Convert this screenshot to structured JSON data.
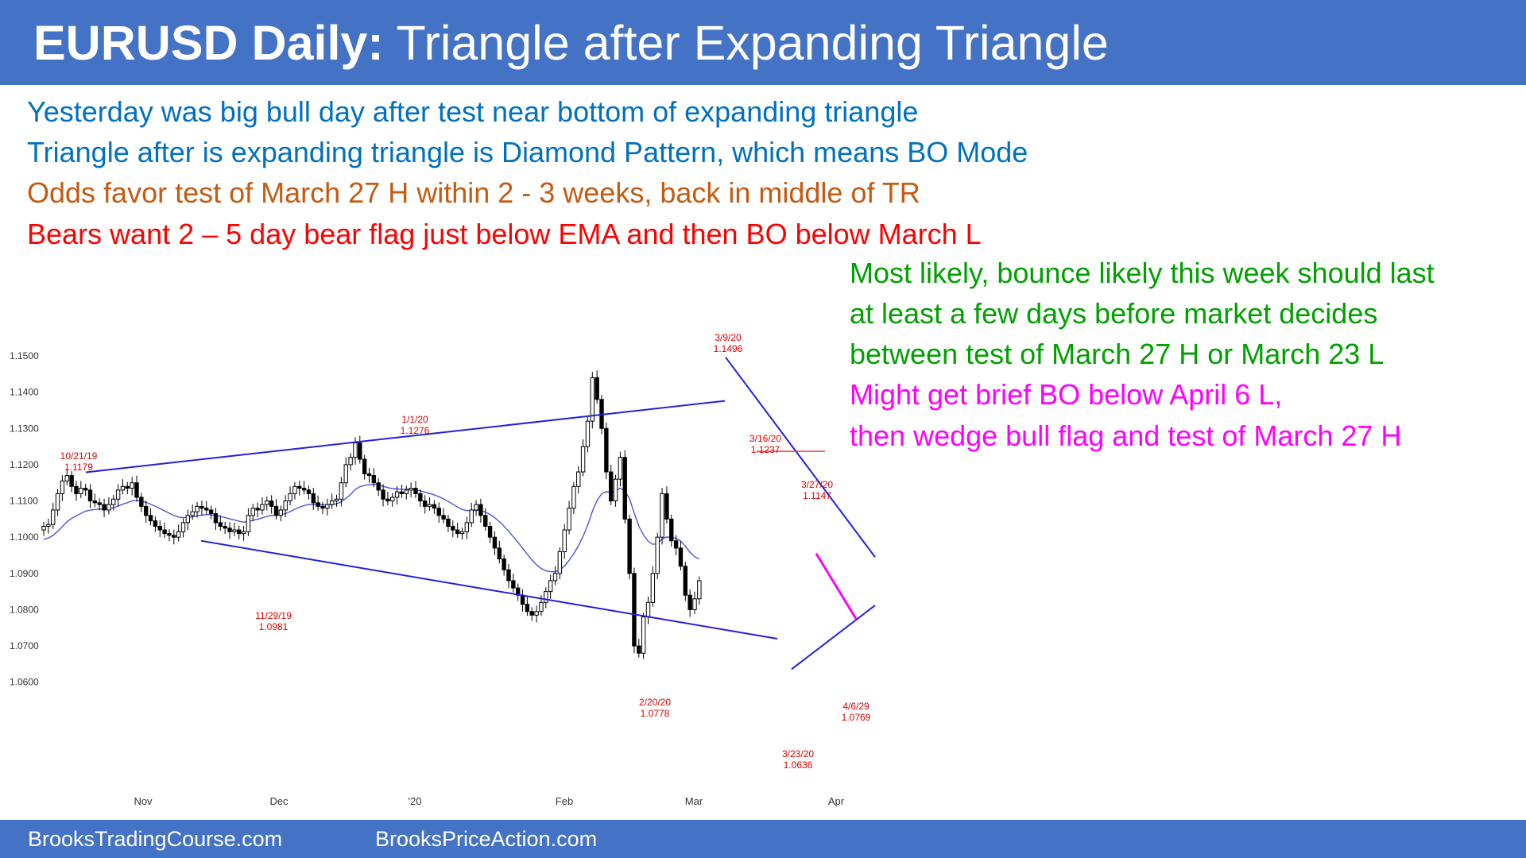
{
  "header": {
    "title_bold": "EURUSD Daily:",
    "title_rest": " Triangle after Expanding Triangle"
  },
  "commentary": [
    {
      "text": "Yesterday was big bull day after test near bottom of expanding triangle",
      "color": "#0070c0"
    },
    {
      "text": "Triangle after is expanding triangle is Diamond Pattern, which means BO Mode",
      "color": "#0070c0"
    },
    {
      "text": "Odds favor test of March 27 H within 2  - 3 weeks, back in middle of TR",
      "color": "#c55a11"
    },
    {
      "text": "Bears want 2 – 5 day bear flag just below EMA and then BO below March L",
      "color": "#ff0000"
    },
    {
      "text": "Most likely, bounce likely this week should last",
      "color": "#00a000"
    },
    {
      "text": "at least a few days before market decides",
      "color": "#00a000"
    },
    {
      "text": "between test of March 27 H or March 23 L",
      "color": "#00a000"
    },
    {
      "text": "Might get brief BO below April 6 L,",
      "color": "#ff00ff"
    },
    {
      "text": "then wedge bull flag and test of March 27 H",
      "color": "#ff00ff"
    }
  ],
  "footer": {
    "left": "BrooksTradingCourse.com",
    "right": "BrooksPriceAction.com"
  },
  "chart_data": {
    "type": "candlestick",
    "title": "",
    "y_ticks": [
      "1.1500",
      "1.1400",
      "1.1300",
      "1.1200",
      "1.1100",
      "1.1000",
      "1.0900",
      "1.0800",
      "1.0700",
      "1.0600"
    ],
    "x_ticks": [
      "Nov",
      "Dec",
      "'20",
      "Feb",
      "Mar",
      "Apr"
    ],
    "ylim": [
      1.0555,
      1.1545
    ],
    "grid": false,
    "close": [
      1.103,
      1.1035,
      1.1075,
      1.112,
      1.1155,
      1.117,
      1.114,
      1.112,
      1.1135,
      1.113,
      1.11,
      1.1095,
      1.109,
      1.1075,
      1.109,
      1.1105,
      1.113,
      1.114,
      1.1135,
      1.115,
      1.111,
      1.1085,
      1.106,
      1.1045,
      1.103,
      1.102,
      1.101,
      1.1005,
      1.1,
      1.1015,
      1.104,
      1.106,
      1.107,
      1.1085,
      1.108,
      1.1075,
      1.1065,
      1.104,
      1.103,
      1.1025,
      1.1015,
      1.102,
      1.101,
      1.1015,
      1.106,
      1.108,
      1.1075,
      1.109,
      1.11,
      1.1085,
      1.106,
      1.1075,
      1.11,
      1.112,
      1.114,
      1.1135,
      1.113,
      1.112,
      1.1095,
      1.1085,
      1.108,
      1.109,
      1.11,
      1.1105,
      1.115,
      1.12,
      1.122,
      1.126,
      1.1215,
      1.1175,
      1.117,
      1.115,
      1.113,
      1.1105,
      1.11,
      1.111,
      1.1125,
      1.112,
      1.113,
      1.1135,
      1.112,
      1.11,
      1.1085,
      1.109,
      1.108,
      1.106,
      1.105,
      1.103,
      1.102,
      1.101,
      1.1015,
      1.104,
      1.1075,
      1.109,
      1.106,
      1.103,
      1.1,
      1.097,
      1.094,
      1.091,
      1.088,
      1.086,
      1.084,
      1.0815,
      1.0795,
      1.0785,
      1.0795,
      1.082,
      1.085,
      1.088,
      1.09,
      1.096,
      1.102,
      1.108,
      1.114,
      1.118,
      1.125,
      1.132,
      1.144,
      1.138,
      1.13,
      1.118,
      1.11,
      1.116,
      1.122,
      1.105,
      1.09,
      1.07,
      1.068,
      1.078,
      1.082,
      1.09,
      1.1,
      1.112,
      1.105,
      1.099,
      1.097,
      1.092,
      1.084,
      1.08,
      1.083,
      1.088
    ],
    "labels": [
      {
        "date": "10/21/19",
        "price": "1.1179"
      },
      {
        "date": "11/29/19",
        "price": "1.0981"
      },
      {
        "date": "1/1/20",
        "price": "1.1276"
      },
      {
        "date": "2/20/20",
        "price": "1.0778"
      },
      {
        "date": "3/9/20",
        "price": "1.1496"
      },
      {
        "date": "3/16/20",
        "price": "1.1237"
      },
      {
        "date": "3/27/20",
        "price": "1.1147"
      },
      {
        "date": "3/23/20",
        "price": "1.0636"
      },
      {
        "date": "4/6/29",
        "price": "1.0769"
      }
    ],
    "colors": {
      "trendlines": "#2020e0",
      "ema": "#4a55d8",
      "bull_flag_line": "#ff00ff",
      "label": "#e00000",
      "resistance": "#e03030"
    }
  }
}
